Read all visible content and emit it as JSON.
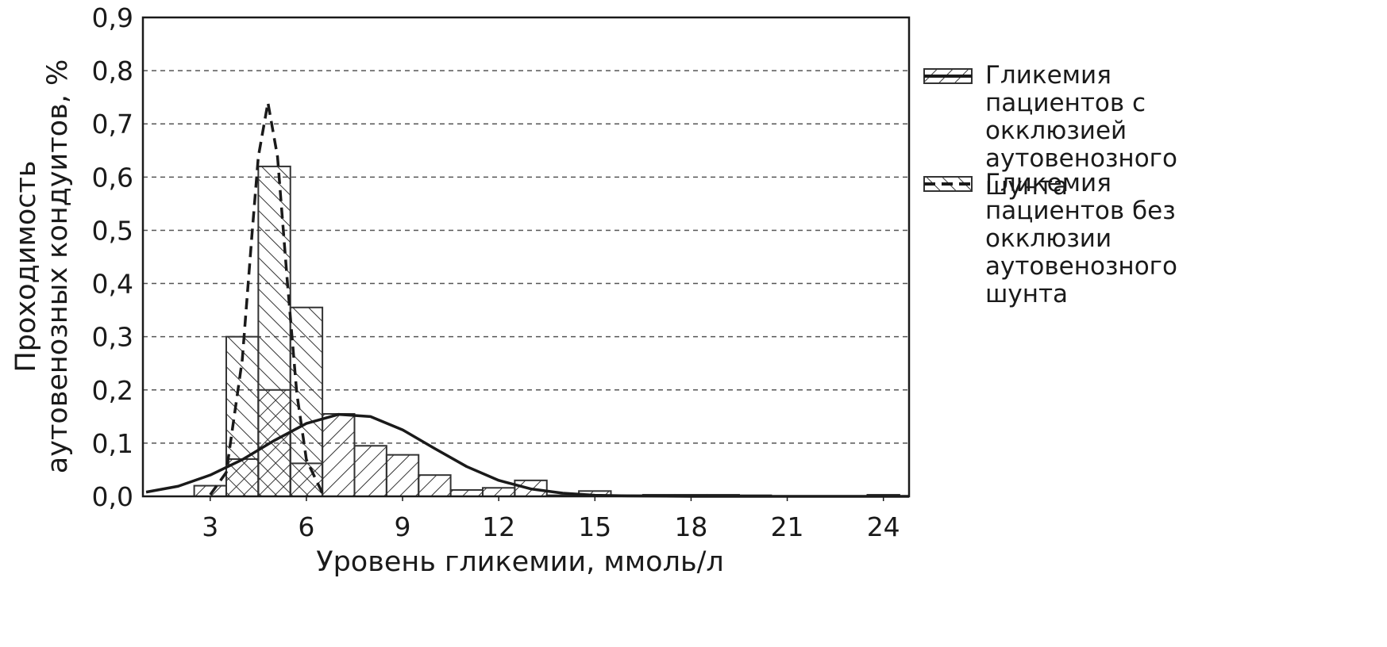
{
  "chart_data": {
    "type": "histogram",
    "xlabel": "Уровень гликемии, ммоль/л",
    "ylabel": [
      "Проходимость",
      "аутовенозных кондуитов, %"
    ],
    "bins": [
      2.5,
      3.5,
      4.5,
      5.5,
      6.5,
      7.5,
      8.5,
      9.5,
      10.5,
      11.5,
      12.5,
      13.5,
      14.5,
      15.5,
      16.5,
      17.5,
      18.5,
      19.5,
      20.5,
      21.5,
      22.5,
      23.5,
      24.5
    ],
    "series": [
      {
        "name": "Гликемия пациентов с окклюзией аутовенозного шунта",
        "color": "#333333",
        "hatch": "/",
        "line_style": "solid",
        "values": [
          0.02,
          0.07,
          0.2,
          0.062,
          0.155,
          0.095,
          0.078,
          0.04,
          0.012,
          0.016,
          0.03,
          0.002,
          0.01,
          0.002,
          0.003,
          0.003,
          0.003,
          0.002,
          0,
          0,
          0,
          0.003
        ],
        "curve": {
          "x": [
            1,
            2,
            3,
            4,
            5,
            6,
            7,
            8,
            9,
            10,
            11,
            12,
            13,
            14,
            15,
            16,
            18,
            21,
            24.8
          ],
          "values": [
            0.008,
            0.019,
            0.04,
            0.069,
            0.105,
            0.137,
            0.154,
            0.15,
            0.125,
            0.09,
            0.056,
            0.03,
            0.014,
            0.006,
            0.002,
            0.001,
            0,
            0,
            0
          ]
        }
      },
      {
        "name": "Гликемия пациентов без окклюзии аутовенозного шунта",
        "color": "#333333",
        "hatch": "\\",
        "line_style": "dashed",
        "values": [
          0,
          0.3,
          0.62,
          0.355,
          0,
          0,
          0,
          0,
          0,
          0,
          0,
          0,
          0,
          0,
          0,
          0,
          0,
          0,
          0,
          0,
          0,
          0
        ],
        "curve": {
          "x": [
            3.0,
            3.5,
            4.0,
            4.3,
            4.5,
            4.8,
            5.1,
            5.4,
            5.7,
            6.0,
            6.5
          ],
          "values": [
            0.003,
            0.045,
            0.257,
            0.49,
            0.638,
            0.74,
            0.638,
            0.408,
            0.194,
            0.069,
            0.006
          ]
        }
      }
    ],
    "xlim": [
      0.9,
      24.8
    ],
    "xticks": [
      3,
      6,
      9,
      12,
      15,
      18,
      21,
      24
    ],
    "ylim": [
      0,
      0.9
    ],
    "yticks": [
      {
        "value": 0,
        "label": "0,0"
      },
      {
        "value": 0.1,
        "label": "0,1"
      },
      {
        "value": 0.2,
        "label": "0,2"
      },
      {
        "value": 0.3,
        "label": "0,3"
      },
      {
        "value": 0.4,
        "label": "0,4"
      },
      {
        "value": 0.5,
        "label": "0,5"
      },
      {
        "value": 0.6,
        "label": "0,6"
      },
      {
        "value": 0.7,
        "label": "0,7"
      },
      {
        "value": 0.8,
        "label": "0,8"
      },
      {
        "value": 0.9,
        "label": "0,9"
      }
    ],
    "grid": true
  }
}
